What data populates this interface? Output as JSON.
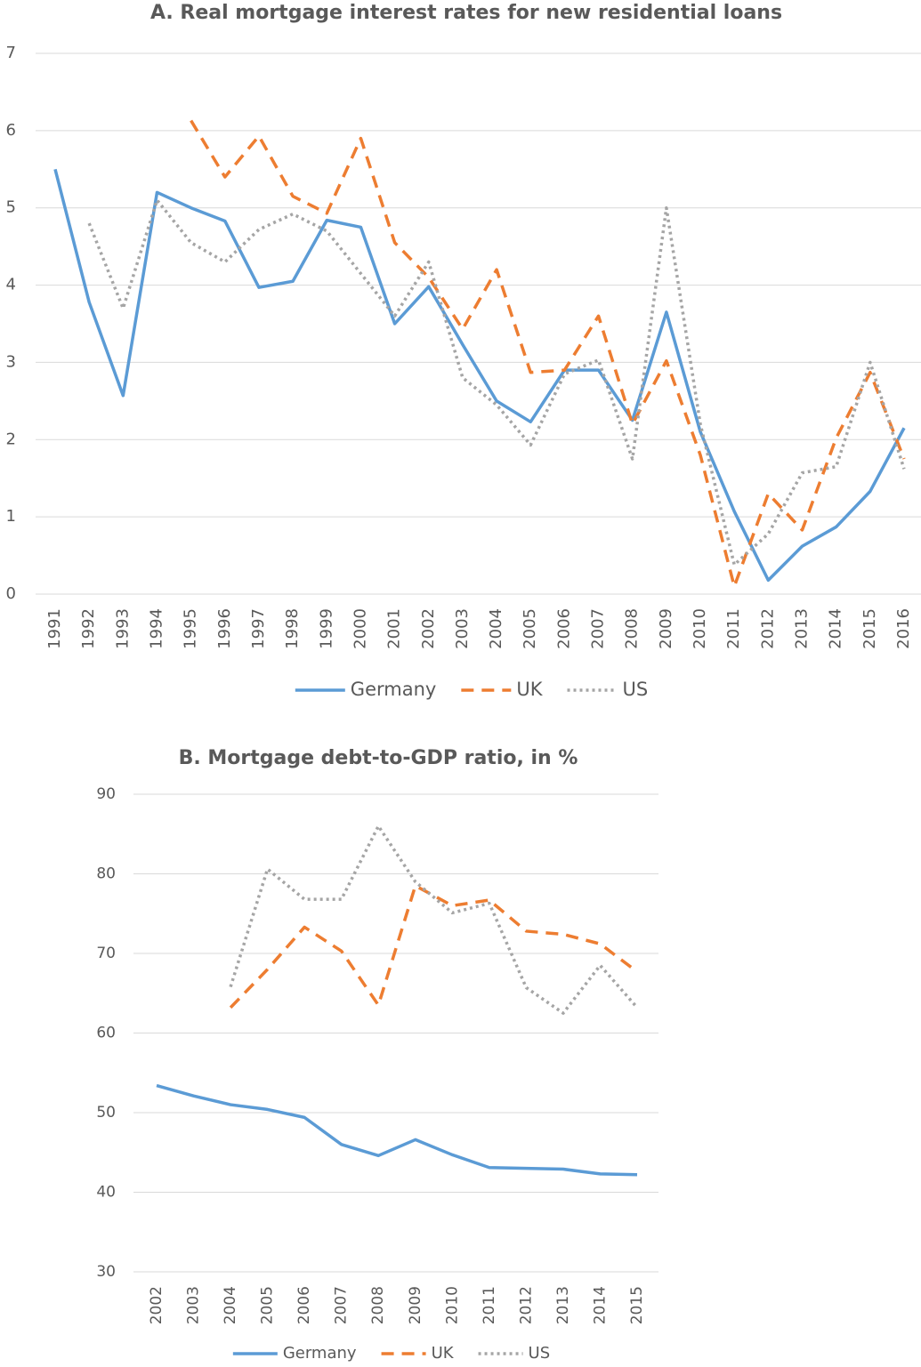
{
  "chart_data": [
    {
      "type": "line",
      "title": "A. Real mortgage interest rates for new residential loans",
      "categories": [
        "1991",
        "1992",
        "1993",
        "1994",
        "1995",
        "1996",
        "1997",
        "1998",
        "1999",
        "2000",
        "2001",
        "2002",
        "2003",
        "2004",
        "2005",
        "2006",
        "2007",
        "2008",
        "2009",
        "2010",
        "2011",
        "2012",
        "2013",
        "2014",
        "2015",
        "2016"
      ],
      "series": [
        {
          "name": "Germany",
          "color": "#5b9bd5",
          "style": "solid",
          "values": [
            5.5,
            3.78,
            2.57,
            5.2,
            5.0,
            4.83,
            3.97,
            4.05,
            4.84,
            4.75,
            3.5,
            3.98,
            3.23,
            2.5,
            2.23,
            2.9,
            2.9,
            2.25,
            3.65,
            2.1,
            1.07,
            0.18,
            0.62,
            0.87,
            1.33,
            2.15
          ]
        },
        {
          "name": "UK",
          "color": "#ed7d31",
          "style": "dashed",
          "values": [
            null,
            null,
            null,
            null,
            6.13,
            5.4,
            5.93,
            5.15,
            4.93,
            5.9,
            4.55,
            4.1,
            3.43,
            4.2,
            2.87,
            2.9,
            3.6,
            2.2,
            3.02,
            1.8,
            0.1,
            1.3,
            0.83,
            2.02,
            2.87,
            1.75
          ]
        },
        {
          "name": "US",
          "color": "#a5a5a5",
          "style": "dotted",
          "values": [
            null,
            4.8,
            3.7,
            5.1,
            4.55,
            4.3,
            4.72,
            4.92,
            4.7,
            4.15,
            3.6,
            4.3,
            2.8,
            2.45,
            1.93,
            2.85,
            3.03,
            1.75,
            5.0,
            2.2,
            0.38,
            0.78,
            1.57,
            1.65,
            3.0,
            1.62
          ]
        }
      ],
      "ylim": [
        0,
        7
      ],
      "yticks": [
        0,
        1,
        2,
        3,
        4,
        5,
        6,
        7
      ],
      "grid": true,
      "legend": "bottom"
    },
    {
      "type": "line",
      "title": "B. Mortgage debt-to-GDP ratio, in %",
      "categories": [
        "2002",
        "2003",
        "2004",
        "2005",
        "2006",
        "2007",
        "2008",
        "2009",
        "2010",
        "2011",
        "2012",
        "2013",
        "2014",
        "2015"
      ],
      "series": [
        {
          "name": "Germany",
          "color": "#5b9bd5",
          "style": "solid",
          "values": [
            53.4,
            52.1,
            51.0,
            50.4,
            49.4,
            46.0,
            44.6,
            46.6,
            44.7,
            43.1,
            43.0,
            42.9,
            42.3,
            42.2
          ]
        },
        {
          "name": "UK",
          "color": "#ed7d31",
          "style": "dashed",
          "values": [
            null,
            null,
            63.2,
            68.0,
            73.3,
            70.3,
            63.5,
            78.5,
            76.0,
            76.7,
            72.8,
            72.4,
            71.2,
            67.7
          ]
        },
        {
          "name": "US",
          "color": "#a5a5a5",
          "style": "dotted",
          "values": [
            null,
            null,
            65.8,
            80.6,
            76.8,
            76.8,
            86.0,
            79.0,
            75.1,
            76.3,
            65.7,
            62.5,
            68.5,
            63.2
          ]
        }
      ],
      "ylim": [
        30,
        90
      ],
      "yticks": [
        30,
        40,
        50,
        60,
        70,
        80,
        90
      ],
      "grid": true,
      "legend": "bottom"
    }
  ]
}
